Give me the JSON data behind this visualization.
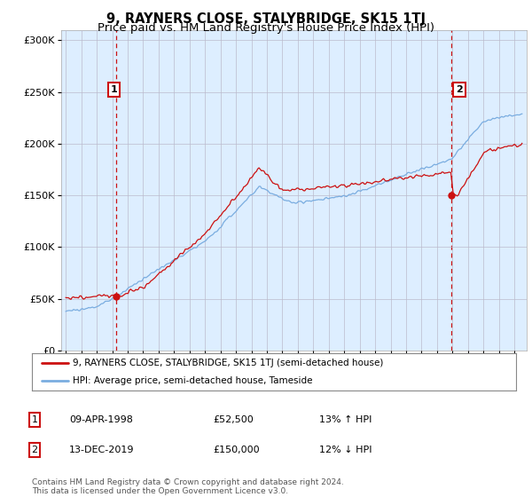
{
  "title": "9, RAYNERS CLOSE, STALYBRIDGE, SK15 1TJ",
  "subtitle": "Price paid vs. HM Land Registry's House Price Index (HPI)",
  "ytick_values": [
    0,
    50000,
    100000,
    150000,
    200000,
    250000,
    300000
  ],
  "ylim": [
    0,
    310000
  ],
  "xlim_start": 1994.7,
  "xlim_end": 2024.8,
  "sale1_year": 1998.27,
  "sale1_price": 52500,
  "sale2_year": 2019.95,
  "sale2_price": 150000,
  "hpi_color": "#7aade0",
  "price_color": "#cc1111",
  "vline_color": "#cc1111",
  "chart_bg": "#ddeeff",
  "background_color": "#ffffff",
  "grid_color": "#bbbbcc",
  "legend_label_price": "9, RAYNERS CLOSE, STALYBRIDGE, SK15 1TJ (semi-detached house)",
  "legend_label_hpi": "HPI: Average price, semi-detached house, Tameside",
  "table_row1": [
    "1",
    "09-APR-1998",
    "£52,500",
    "13% ↑ HPI"
  ],
  "table_row2": [
    "2",
    "13-DEC-2019",
    "£150,000",
    "12% ↓ HPI"
  ],
  "footer": "Contains HM Land Registry data © Crown copyright and database right 2024.\nThis data is licensed under the Open Government Licence v3.0.",
  "title_fontsize": 10.5,
  "subtitle_fontsize": 9.5,
  "tick_fontsize": 8
}
